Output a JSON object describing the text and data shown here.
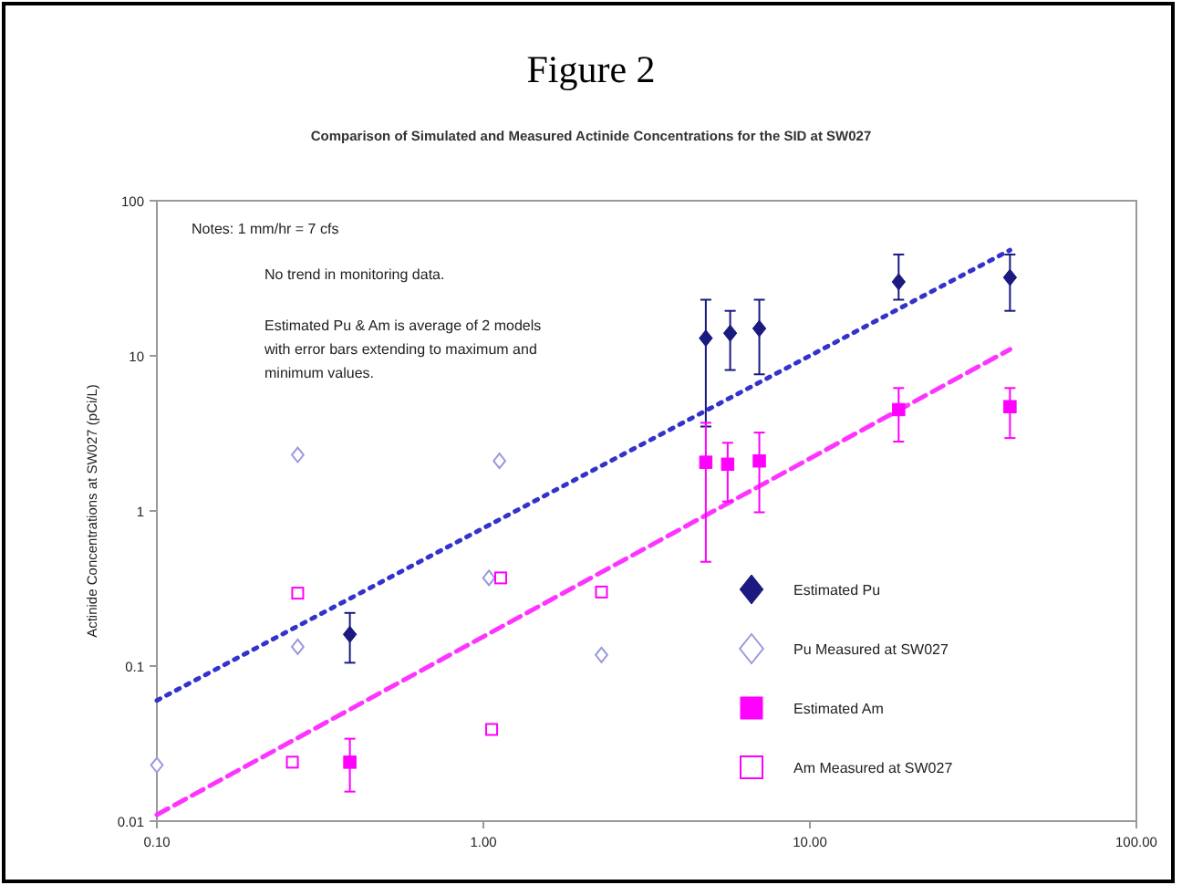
{
  "chart_data": {
    "type": "scatter",
    "title": "Figure 2",
    "subtitle": "Comparison of Simulated and Measured Actinide Concentrations for the SID at SW027",
    "ylabel": "Actinide Concentrations at SW027 (pCi/L)",
    "annotations": [
      "Notes: 1 mm/hr = 7 cfs",
      "No trend in monitoring data.",
      "Estimated Pu & Am is average of 2 models with error bars extending to maximum and minimum values."
    ],
    "log": "xy",
    "grid": false,
    "legend": "bottom right",
    "xlim": [
      0.1,
      100
    ],
    "xticks": [
      {
        "value": 0.1,
        "label": "0.10"
      },
      {
        "value": 1,
        "label": "1.00"
      },
      {
        "value": 10,
        "label": "10.00"
      },
      {
        "value": 100,
        "label": "100.00"
      }
    ],
    "ylim": [
      0.01,
      100
    ],
    "yticks": [
      0.01,
      0.1,
      1,
      10,
      100
    ],
    "series": [
      {
        "type": "line",
        "color": "#3333cc",
        "line_style": "dotted",
        "marker": "none",
        "x": [
          0.1,
          41
        ],
        "values": [
          0.06,
          48
        ]
      },
      {
        "type": "line",
        "color": "#ff33ff",
        "line_style": "dashed",
        "marker": "none",
        "x": [
          0.1,
          41
        ],
        "values": [
          0.011,
          11
        ]
      },
      {
        "name": "Estimated Pu",
        "color": "#1a1a80",
        "marker": "diamond",
        "x": [
          0.39,
          4.8,
          5.7,
          7.0,
          18.7,
          41
        ],
        "values": [
          0.16,
          13,
          14,
          15,
          30,
          32
        ],
        "errors": [
          [
            0.105,
            0.22
          ],
          [
            3.5,
            23
          ],
          [
            8.1,
            19.5
          ],
          [
            7.6,
            23
          ],
          [
            23,
            45
          ],
          [
            19.5,
            45
          ]
        ]
      },
      {
        "name": "Pu Measured at SW027",
        "color": "#9999dd",
        "marker": "diamond",
        "x": [
          0.1,
          0.27,
          0.27,
          1.12,
          1.04,
          2.3
        ],
        "values": [
          0.023,
          2.3,
          0.133,
          2.1,
          0.37,
          0.118
        ]
      },
      {
        "name": "Estimated Am",
        "color": "#ff00ff",
        "marker": "square",
        "x": [
          0.39,
          4.8,
          5.6,
          7.0,
          18.7,
          41
        ],
        "values": [
          0.024,
          2.06,
          2.0,
          2.1,
          4.5,
          4.7
        ],
        "errors": [
          [
            0.0155,
            0.034
          ],
          [
            0.47,
            3.7
          ],
          [
            1.15,
            2.75
          ],
          [
            0.98,
            3.2
          ],
          [
            2.8,
            6.2
          ],
          [
            2.95,
            6.2
          ]
        ]
      },
      {
        "name": "Am Measured at SW027",
        "color": "#ff00ff",
        "marker": "square",
        "x": [
          0.27,
          0.26,
          1.06,
          1.13,
          2.3
        ],
        "values": [
          0.295,
          0.024,
          0.039,
          0.37,
          0.3
        ]
      }
    ]
  }
}
